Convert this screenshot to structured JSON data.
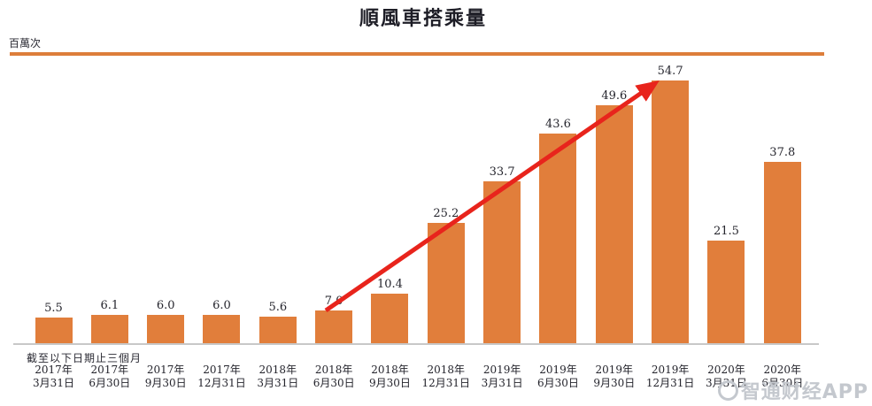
{
  "chart_data": {
    "type": "bar",
    "title": "順風車搭乘量",
    "unit_label": "百萬次",
    "xlabel": "截至以下日期止三個月",
    "ylabel": "百萬次",
    "ylim": [
      0,
      55
    ],
    "grid": false,
    "categories": [
      "2017年3月31日",
      "2017年6月30日",
      "2017年9月30日",
      "2017年12月31日",
      "2018年3月31日",
      "2018年6月30日",
      "2018年9月30日",
      "2018年12月31日",
      "2019年3月31日",
      "2019年6月30日",
      "2019年9月30日",
      "2019年12月31日",
      "2020年3月31日",
      "2020年6月30日"
    ],
    "values": [
      5.5,
      6.1,
      6.0,
      6.0,
      5.6,
      7.0,
      10.4,
      25.2,
      33.7,
      43.6,
      49.6,
      54.7,
      21.5,
      37.8
    ],
    "annotations": [
      {
        "type": "arrow",
        "from_category": "2018年6月30日",
        "to_category": "2019年12月31日",
        "color": "#e8241c"
      }
    ],
    "colors": {
      "bar": "#e17e3b",
      "top_rule": "#dd7e3a",
      "axis": "#c8c8c8",
      "text": "#25252d",
      "arrow": "#e8241c",
      "watermark": "#c4c8ce"
    }
  },
  "watermark": {
    "text": "智通财经APP",
    "icon": "circle-logo-icon"
  }
}
